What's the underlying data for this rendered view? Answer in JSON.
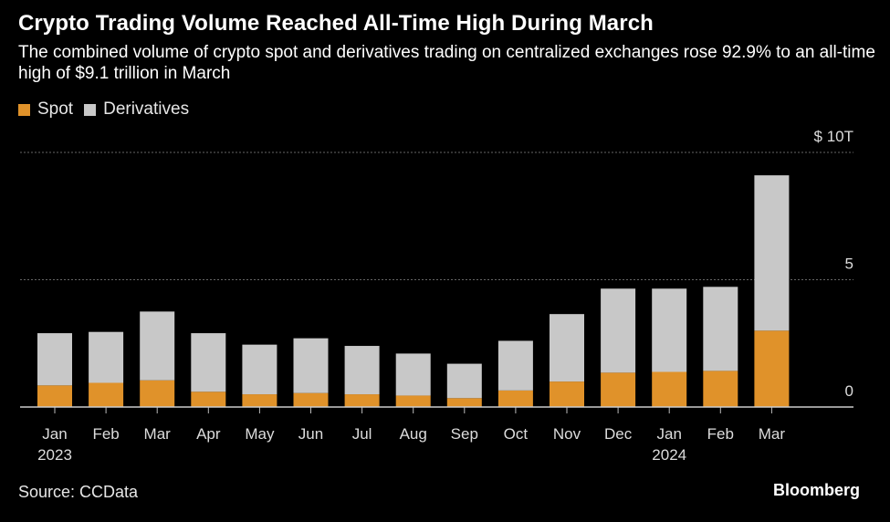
{
  "title": "Crypto Trading Volume Reached All-Time High During March",
  "subtitle": "The combined volume of crypto spot and derivatives trading on centralized exchanges rose 92.9% to an all-time high of $9.1 trillion in March",
  "source": "Source: CCData",
  "brand": "Bloomberg",
  "colors": {
    "spot": "#e0922a",
    "derivatives": "#c8c8c8",
    "grid": "#666666",
    "text": "#dcdcdc"
  },
  "chart_data": {
    "type": "bar",
    "stacked": true,
    "categories": [
      "Jan",
      "Feb",
      "Mar",
      "Apr",
      "May",
      "Jun",
      "Jul",
      "Aug",
      "Sep",
      "Oct",
      "Nov",
      "Dec",
      "Jan",
      "Feb",
      "Mar"
    ],
    "year_labels": [
      "2023",
      "",
      "",
      "",
      "",
      "",
      "",
      "",
      "",
      "",
      "",
      "",
      "2024",
      "",
      ""
    ],
    "series": [
      {
        "name": "Spot",
        "values": [
          0.85,
          0.95,
          1.05,
          0.6,
          0.5,
          0.55,
          0.5,
          0.45,
          0.35,
          0.65,
          1.0,
          1.35,
          1.38,
          1.42,
          3.0
        ]
      },
      {
        "name": "Derivatives",
        "values": [
          2.05,
          2.0,
          2.7,
          2.3,
          1.95,
          2.15,
          1.9,
          1.65,
          1.35,
          1.95,
          2.65,
          3.3,
          3.27,
          3.3,
          6.1
        ]
      }
    ],
    "ylim": [
      0,
      10
    ],
    "y_ticks": [
      {
        "value": 10,
        "label": "$ 10T"
      },
      {
        "value": 5,
        "label": "5"
      },
      {
        "value": 0,
        "label": "0"
      }
    ],
    "grid": true,
    "y_axis_position": "right",
    "legend_position": "top-left"
  }
}
